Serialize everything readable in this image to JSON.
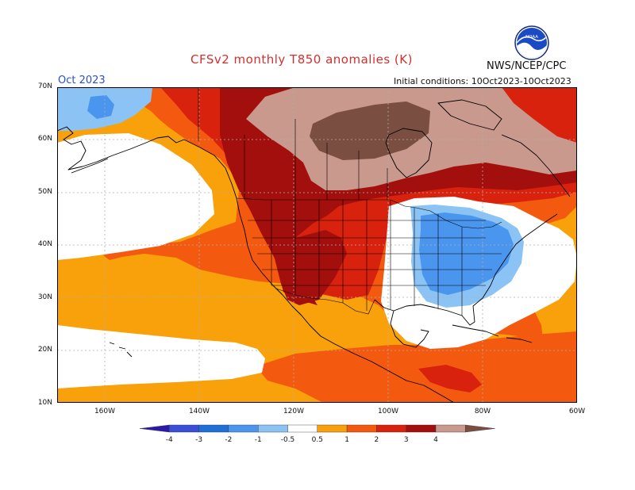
{
  "header": {
    "title": "CFSv2 monthly T850 anomalies (K)",
    "agency": "NWS/NCEP/CPC",
    "month": "Oct 2023",
    "initial_conditions": "Initial conditions: 10Oct2023-10Oct2023",
    "logo_text": "NOAA"
  },
  "axes": {
    "lat_labels": [
      "70N",
      "60N",
      "50N",
      "40N",
      "30N",
      "20N",
      "10N"
    ],
    "lon_labels": [
      "160W",
      "140W",
      "120W",
      "100W",
      "80W",
      "60W"
    ],
    "lat_range": [
      10,
      70
    ],
    "lon_range": [
      -170,
      -60
    ]
  },
  "colorbar": {
    "levels": [
      "-4",
      "-3",
      "-2",
      "-1",
      "-0.5",
      "0.5",
      "1",
      "2",
      "3",
      "4"
    ],
    "colors": [
      "#2b1aa8",
      "#3a4fd8",
      "#1f6fd6",
      "#4a96ee",
      "#8cc3f5",
      "#ffffff",
      "#f8a10a",
      "#f45a0f",
      "#d8220e",
      "#a20f0c",
      "#c8998c",
      "#7a4e40"
    ]
  }
}
